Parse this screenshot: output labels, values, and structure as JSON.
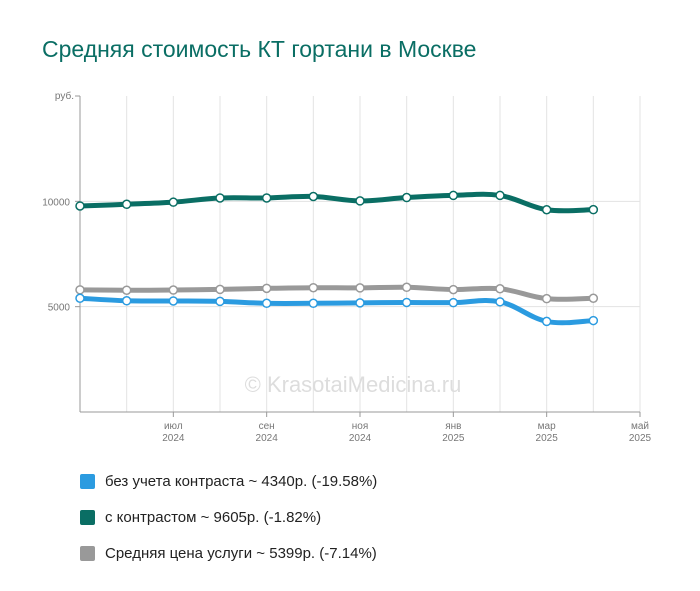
{
  "chart_data": {
    "type": "line",
    "title": "Средняя стоимость КТ гортани в Москве",
    "y_unit": "руб.",
    "ylim": [
      0,
      15000
    ],
    "y_ticks": [
      5000,
      10000
    ],
    "y_tick_labels": [
      "5000",
      "10000"
    ],
    "x": [
      "2024-05",
      "2024-06",
      "2024-07",
      "2024-08",
      "2024-09",
      "2024-10",
      "2024-11",
      "2024-12",
      "2025-01",
      "2025-02",
      "2025-03",
      "2025-04",
      "2025-05"
    ],
    "x_tick_labels": [
      {
        "month": "июл",
        "year": "2024"
      },
      {
        "month": "сен",
        "year": "2024"
      },
      {
        "month": "ноя",
        "year": "2024"
      },
      {
        "month": "янв",
        "year": "2025"
      },
      {
        "month": "мар",
        "year": "2025"
      },
      {
        "month": "май",
        "year": "2025"
      }
    ],
    "x_tick_positions": [
      "2024-07",
      "2024-09",
      "2024-11",
      "2025-01",
      "2025-03",
      "2025-05"
    ],
    "grid": true,
    "legend_placement": "bottom",
    "watermark": "© KrasotaiMedicina.ru",
    "series": [
      {
        "name": "с контрастом",
        "color": "#0a6e64",
        "values": [
          9780,
          9860,
          9960,
          10160,
          10160,
          10230,
          10020,
          10180,
          10280,
          10280,
          9600,
          9605,
          null
        ],
        "legend_label": "с контрастом ~ 9605р. (-1.82%)"
      },
      {
        "name": "Средняя цена услуги",
        "color": "#999999",
        "values": [
          5800,
          5780,
          5790,
          5820,
          5870,
          5900,
          5890,
          5920,
          5810,
          5850,
          5380,
          5399,
          null
        ],
        "legend_label": "Средняя цена услуги ~ 5399р. (-7.14%)"
      },
      {
        "name": "без учета контраста",
        "color": "#2b9be0",
        "values": [
          5400,
          5280,
          5270,
          5250,
          5160,
          5160,
          5180,
          5200,
          5190,
          5230,
          4300,
          4340,
          null
        ],
        "legend_label": "без учета контраста ~ 4340р. (-19.58%)"
      }
    ],
    "legend_order": [
      "без учета контраста",
      "с контрастом",
      "Средняя цена услуги"
    ]
  }
}
